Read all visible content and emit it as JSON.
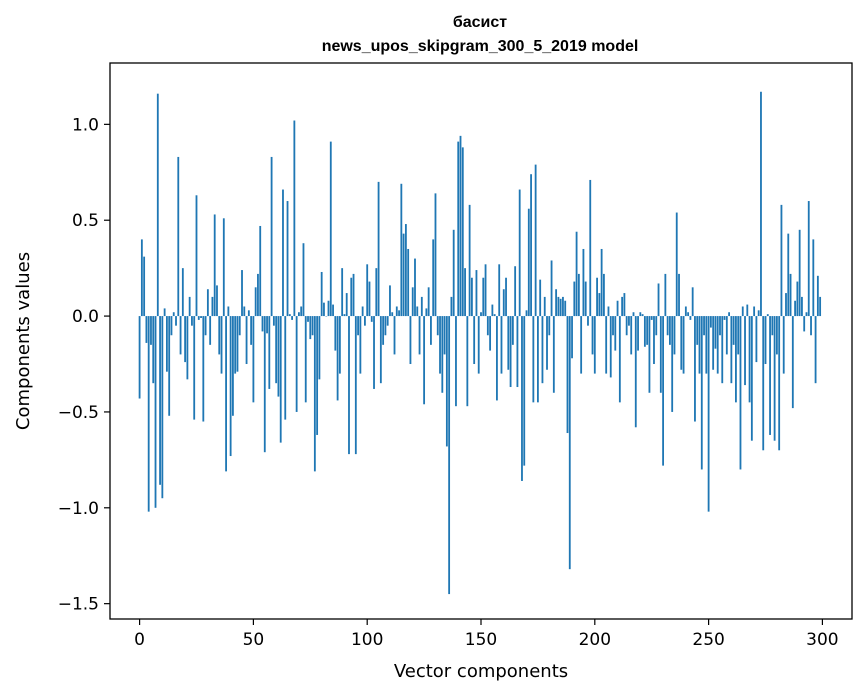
{
  "chart_data": {
    "type": "bar",
    "title": "басист",
    "subtitle": "news_upos_skipgram_300_5_2019 model",
    "xlabel": "Vector components",
    "ylabel": "Components values",
    "xlim": [
      -13,
      313
    ],
    "ylim": [
      -1.58,
      1.32
    ],
    "xticks": [
      0,
      50,
      100,
      150,
      200,
      250,
      300
    ],
    "yticks": [
      -1.5,
      -1.0,
      -0.5,
      0.0,
      0.5,
      1.0
    ],
    "ytick_labels": [
      "−1.5",
      "−1.0",
      "−0.5",
      "0.0",
      "0.5",
      "1.0"
    ],
    "bar_color": "#1f77b4",
    "values": [
      -0.43,
      0.4,
      0.31,
      -0.14,
      -1.02,
      -0.15,
      -0.35,
      -1.0,
      1.16,
      -0.88,
      -0.95,
      0.04,
      -0.29,
      -0.52,
      -0.1,
      0.02,
      -0.05,
      0.83,
      -0.2,
      0.25,
      -0.24,
      -0.33,
      0.1,
      -0.05,
      -0.54,
      0.63,
      -0.02,
      -0.01,
      -0.55,
      -0.1,
      0.14,
      -0.15,
      0.1,
      0.53,
      0.16,
      -0.2,
      -0.3,
      0.51,
      -0.81,
      0.05,
      -0.73,
      -0.52,
      -0.3,
      -0.29,
      -0.1,
      0.24,
      0.05,
      -0.25,
      0.03,
      -0.15,
      -0.45,
      0.15,
      0.22,
      0.47,
      -0.08,
      -0.71,
      -0.09,
      -0.38,
      0.83,
      -0.05,
      -0.35,
      -0.42,
      -0.66,
      0.66,
      -0.54,
      0.6,
      0.01,
      -0.02,
      1.02,
      -0.5,
      0.02,
      0.05,
      0.38,
      -0.45,
      -0.03,
      -0.12,
      -0.1,
      -0.81,
      -0.62,
      -0.33,
      0.23,
      0.07,
      0.0,
      0.08,
      0.91,
      0.06,
      -0.18,
      -0.44,
      -0.3,
      0.25,
      0.01,
      0.12,
      -0.72,
      0.2,
      0.22,
      -0.72,
      -0.1,
      -0.3,
      0.05,
      -0.05,
      0.27,
      0.18,
      -0.03,
      -0.38,
      0.25,
      0.7,
      -0.35,
      -0.15,
      -0.1,
      -0.05,
      0.16,
      0.02,
      -0.2,
      0.05,
      0.03,
      0.69,
      0.43,
      0.48,
      0.35,
      -0.25,
      0.15,
      0.3,
      0.05,
      -0.2,
      0.1,
      -0.46,
      0.04,
      0.15,
      -0.15,
      0.4,
      0.64,
      -0.1,
      -0.3,
      -0.4,
      -0.2,
      -0.68,
      -1.45,
      0.1,
      0.45,
      -0.47,
      0.91,
      0.94,
      0.88,
      0.25,
      -0.47,
      0.58,
      0.2,
      -0.25,
      0.24,
      -0.3,
      0.02,
      0.2,
      0.27,
      -0.1,
      -0.18,
      0.06,
      0.01,
      -0.44,
      0.27,
      -0.3,
      0.14,
      0.2,
      -0.28,
      -0.37,
      -0.15,
      0.26,
      -0.37,
      0.66,
      -0.86,
      -0.78,
      0.03,
      0.56,
      0.74,
      -0.45,
      0.79,
      -0.45,
      0.19,
      -0.35,
      0.1,
      -0.28,
      -0.1,
      0.29,
      -0.4,
      0.14,
      0.1,
      0.09,
      0.1,
      0.08,
      -0.61,
      -1.32,
      -0.22,
      0.18,
      0.44,
      0.22,
      -0.3,
      0.35,
      0.18,
      -0.05,
      0.71,
      -0.2,
      -0.3,
      0.2,
      0.12,
      0.35,
      0.22,
      -0.3,
      0.05,
      -0.32,
      -0.1,
      -0.18,
      0.08,
      -0.45,
      0.1,
      0.12,
      -0.1,
      -0.05,
      -0.2,
      0.02,
      -0.58,
      -0.18,
      0.02,
      0.01,
      -0.16,
      -0.15,
      -0.4,
      -0.02,
      -0.25,
      -0.1,
      0.17,
      -0.4,
      -0.78,
      0.22,
      -0.1,
      -0.15,
      -0.5,
      -0.2,
      0.54,
      0.22,
      -0.28,
      -0.3,
      0.05,
      0.02,
      -0.02,
      0.15,
      -0.55,
      -0.15,
      -0.3,
      -0.8,
      -0.1,
      -0.3,
      -1.02,
      -0.06,
      -0.28,
      -0.17,
      -0.3,
      -0.1,
      -0.35,
      -0.02,
      -0.2,
      0.02,
      -0.35,
      -0.15,
      -0.45,
      -0.2,
      -0.8,
      0.05,
      -0.36,
      0.06,
      -0.45,
      -0.65,
      0.05,
      -0.24,
      0.03,
      1.17,
      -0.7,
      -0.25,
      0.01,
      -0.62,
      -0.1,
      -0.65,
      -0.2,
      -0.7,
      0.58,
      -0.3,
      0.12,
      0.43,
      0.22,
      -0.48,
      0.08,
      0.18,
      0.45,
      0.1,
      -0.08,
      0.02,
      0.6,
      -0.1,
      0.4,
      -0.35,
      0.21,
      0.1
    ]
  }
}
